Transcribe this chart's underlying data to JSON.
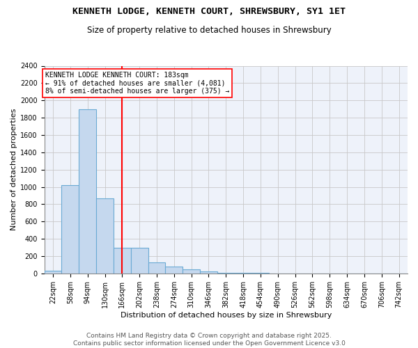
{
  "title": "KENNETH LODGE, KENNETH COURT, SHREWSBURY, SY1 1ET",
  "subtitle": "Size of property relative to detached houses in Shrewsbury",
  "xlabel": "Distribution of detached houses by size in Shrewsbury",
  "ylabel": "Number of detached properties",
  "bar_color": "#c5d8ee",
  "bar_edge_color": "#6aaad4",
  "bg_color": "#eef2fa",
  "grid_color": "#c8c8c8",
  "red_line_x": 183,
  "annotation_text": "KENNETH LODGE KENNETH COURT: 183sqm\n← 91% of detached houses are smaller (4,081)\n8% of semi-detached houses are larger (375) →",
  "categories": [
    "22sqm",
    "58sqm",
    "94sqm",
    "130sqm",
    "166sqm",
    "202sqm",
    "238sqm",
    "274sqm",
    "310sqm",
    "346sqm",
    "382sqm",
    "418sqm",
    "454sqm",
    "490sqm",
    "526sqm",
    "562sqm",
    "598sqm",
    "634sqm",
    "670sqm",
    "706sqm",
    "742sqm"
  ],
  "bin_starts": [
    22,
    58,
    94,
    130,
    166,
    202,
    238,
    274,
    310,
    346,
    382,
    418,
    454,
    490,
    526,
    562,
    598,
    634,
    670,
    706,
    742
  ],
  "bin_width": 36,
  "values": [
    30,
    1020,
    1900,
    870,
    300,
    300,
    130,
    80,
    50,
    20,
    10,
    5,
    5,
    0,
    0,
    0,
    0,
    0,
    0,
    0,
    0
  ],
  "ylim": [
    0,
    2400
  ],
  "yticks": [
    0,
    200,
    400,
    600,
    800,
    1000,
    1200,
    1400,
    1600,
    1800,
    2000,
    2200,
    2400
  ],
  "title_fontsize": 9.5,
  "subtitle_fontsize": 8.5,
  "axis_label_fontsize": 8,
  "tick_fontsize": 7,
  "annotation_fontsize": 7,
  "footer_text": "Contains HM Land Registry data © Crown copyright and database right 2025.\nContains public sector information licensed under the Open Government Licence v3.0",
  "footer_fontsize": 6.5
}
